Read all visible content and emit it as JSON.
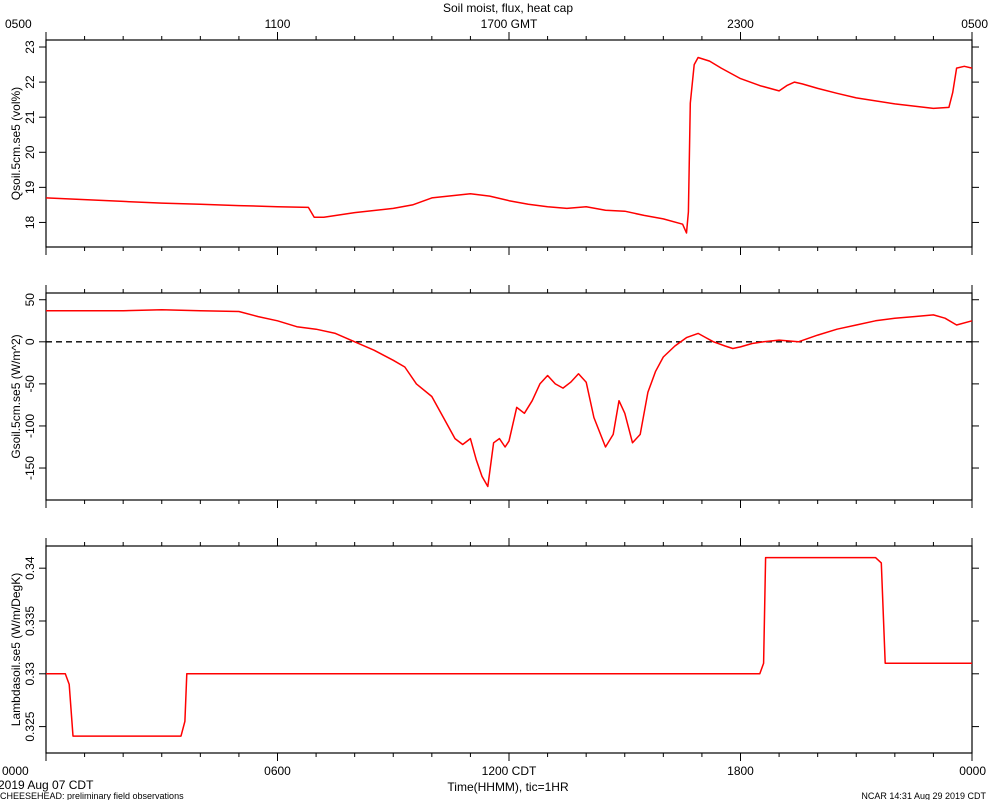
{
  "title": "Soil moist, flux, heat cap",
  "top_axis": {
    "ticks": [
      "0500",
      "1100",
      "1700 GMT",
      "2300",
      "0500"
    ]
  },
  "bottom_axis": {
    "ticks": [
      "0000",
      "0600",
      "1200 CDT",
      "1800",
      "0000"
    ],
    "label": "Time(HHMM), tic=1HR"
  },
  "footer": {
    "date": "2019 Aug 07 CDT",
    "left": "CHEESEHEAD: preliminary field observations",
    "right": "NCAR 14:31 Aug 29 2019 CDT"
  },
  "colors": {
    "series": "#ff0000",
    "axes": "#000000",
    "zero_line": "#000000"
  },
  "chart_data": [
    {
      "type": "line",
      "ylabel": "Qsoil.5cm.se5 (vol%)",
      "xlim": [
        0,
        24
      ],
      "ylim": [
        17.3,
        23.2
      ],
      "yticks": [
        18,
        19,
        20,
        21,
        22,
        23
      ],
      "series": [
        {
          "x": [
            0,
            1,
            2,
            3,
            4,
            5,
            6,
            6.8,
            6.95,
            7.2,
            8,
            9,
            9.5,
            10,
            11,
            11.5,
            12,
            12.5,
            13,
            13.5,
            14,
            14.5,
            15,
            15.5,
            16,
            16.5,
            16.6,
            16.65,
            16.7,
            16.8,
            16.9,
            17.2,
            17.5,
            18,
            18.5,
            19,
            19.2,
            19.4,
            19.6,
            20,
            20.5,
            21,
            22,
            23,
            23.4,
            23.5,
            23.6,
            23.8,
            24
          ],
          "values": [
            18.7,
            18.65,
            18.6,
            18.55,
            18.52,
            18.48,
            18.45,
            18.43,
            18.15,
            18.15,
            18.28,
            18.4,
            18.5,
            18.7,
            18.82,
            18.75,
            18.62,
            18.52,
            18.45,
            18.4,
            18.45,
            18.35,
            18.32,
            18.2,
            18.1,
            17.95,
            17.7,
            18.3,
            21.4,
            22.5,
            22.7,
            22.6,
            22.4,
            22.1,
            21.9,
            21.75,
            21.9,
            22.0,
            21.95,
            21.82,
            21.68,
            21.55,
            21.38,
            21.25,
            21.28,
            21.7,
            22.4,
            22.45,
            22.4
          ]
        }
      ]
    },
    {
      "type": "line",
      "ylabel": "Gsoil.5cm.se5 (W/m^2)",
      "xlim": [
        0,
        24
      ],
      "ylim": [
        -188,
        58
      ],
      "yticks": [
        50,
        0,
        -50,
        -100,
        -150
      ],
      "reference_line": 0,
      "series": [
        {
          "x": [
            0,
            1,
            2,
            3,
            4,
            5,
            5.5,
            6,
            6.5,
            7,
            7.5,
            8,
            8.5,
            9,
            9.3,
            9.6,
            10,
            10.3,
            10.6,
            10.8,
            11,
            11.15,
            11.3,
            11.45,
            11.6,
            11.75,
            11.9,
            12,
            12.2,
            12.4,
            12.6,
            12.8,
            13,
            13.2,
            13.4,
            13.6,
            13.8,
            14,
            14.2,
            14.5,
            14.7,
            14.85,
            15,
            15.2,
            15.4,
            15.6,
            15.8,
            16.0,
            16.3,
            16.6,
            16.9,
            17.1,
            17.3,
            17.6,
            17.8,
            18.0,
            18.3,
            18.6,
            19,
            19.5,
            20,
            20.5,
            21,
            21.5,
            22,
            22.5,
            23,
            23.3,
            23.6,
            24
          ],
          "values": [
            37,
            37,
            37,
            38,
            37,
            36,
            30,
            25,
            18,
            15,
            10,
            0,
            -10,
            -22,
            -30,
            -50,
            -65,
            -90,
            -115,
            -122,
            -115,
            -140,
            -160,
            -172,
            -120,
            -115,
            -125,
            -118,
            -78,
            -85,
            -70,
            -50,
            -40,
            -50,
            -55,
            -48,
            -38,
            -48,
            -90,
            -125,
            -110,
            -70,
            -85,
            -120,
            -110,
            -60,
            -35,
            -18,
            -5,
            5,
            10,
            5,
            0,
            -5,
            -8,
            -6,
            -2,
            0,
            2,
            0,
            8,
            15,
            20,
            25,
            28,
            30,
            32,
            28,
            20,
            25
          ]
        }
      ]
    },
    {
      "type": "line",
      "ylabel": "Lambdasoil.se5 (W/m/DegK)",
      "xlim": [
        0,
        24
      ],
      "ylim": [
        0.3225,
        0.3421
      ],
      "yticks": [
        0.325,
        0.33,
        0.335,
        0.34
      ],
      "series": [
        {
          "x": [
            0,
            0.5,
            0.6,
            0.7,
            3.5,
            3.6,
            3.65,
            18.5,
            18.6,
            18.65,
            21.5,
            21.65,
            21.75,
            24
          ],
          "values": [
            0.33,
            0.33,
            0.329,
            0.3241,
            0.3241,
            0.3255,
            0.33,
            0.33,
            0.331,
            0.341,
            0.341,
            0.3405,
            0.331,
            0.331
          ]
        }
      ]
    }
  ]
}
